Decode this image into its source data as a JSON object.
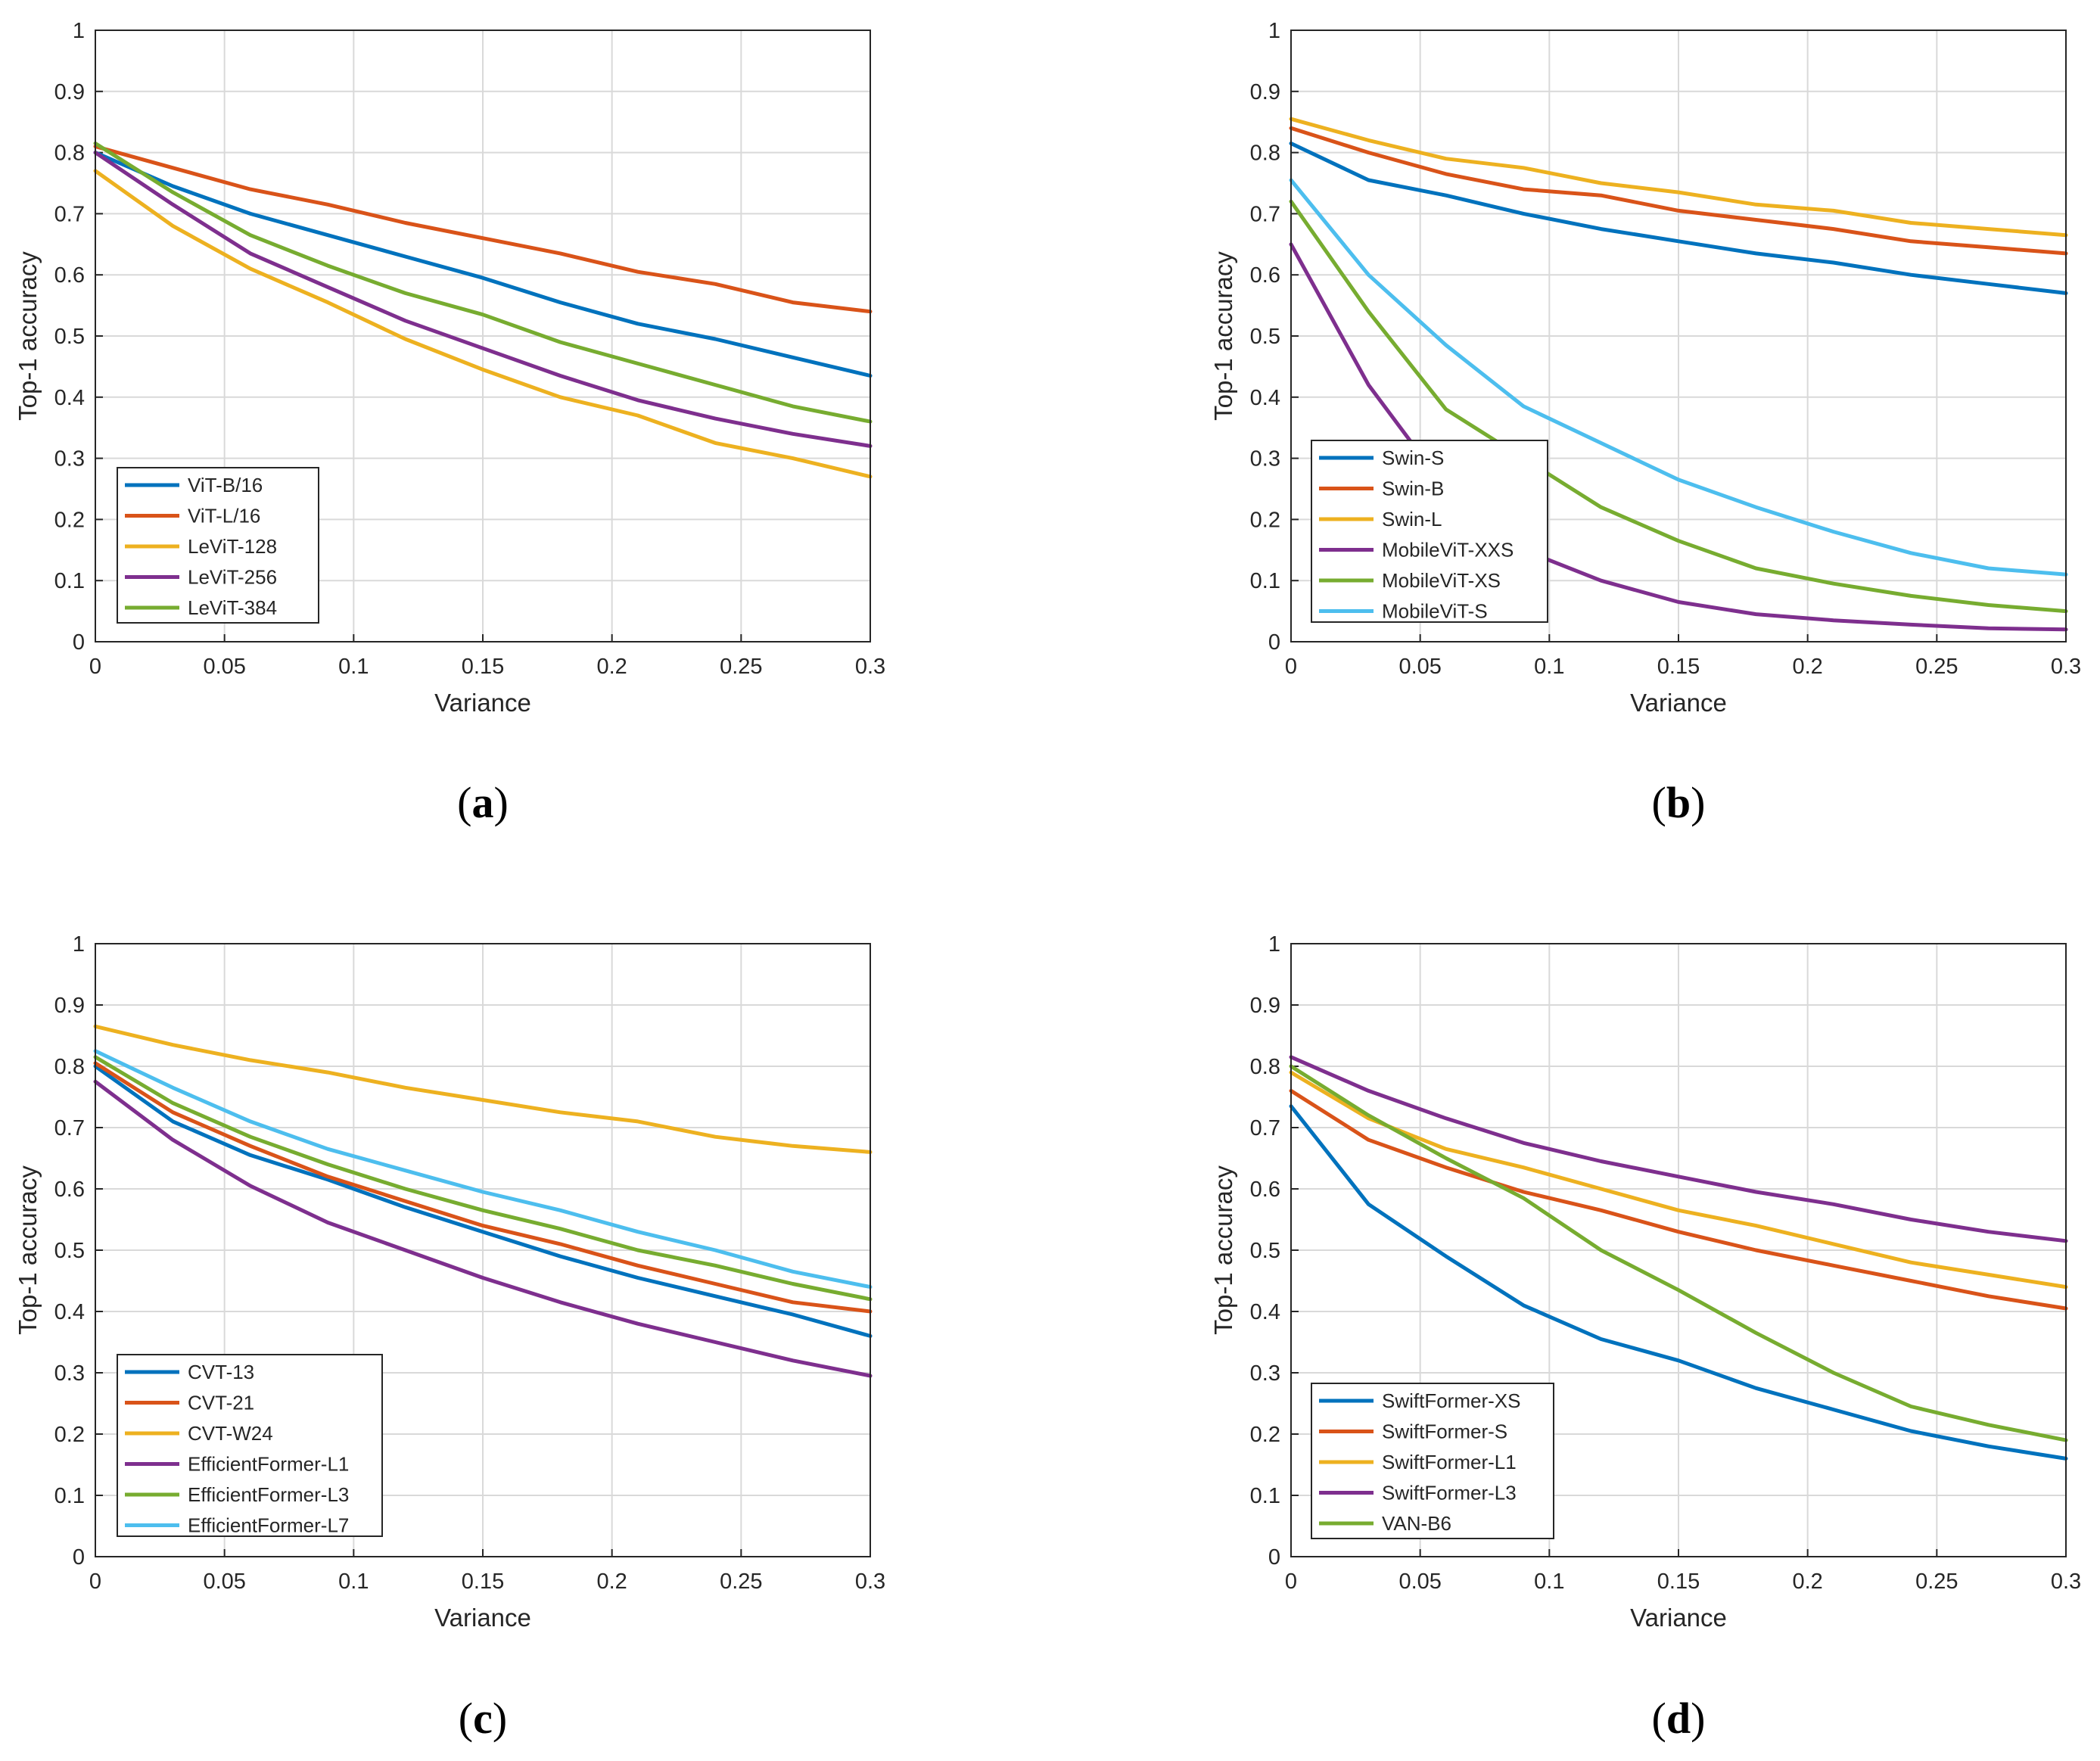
{
  "colors": {
    "blue": "#0072BD",
    "orange": "#D95319",
    "yellow": "#EDB120",
    "purple": "#7E2F8E",
    "green": "#77AC30",
    "cyan": "#4DBEEE"
  },
  "chart_data": [
    {
      "type": "line",
      "caption": "a",
      "xlabel": "Variance",
      "ylabel": "Top-1 accuracy",
      "xlim": [
        0,
        0.3
      ],
      "ylim": [
        0,
        1
      ],
      "x_ticks": [
        "0",
        "0.05",
        "0.1",
        "0.15",
        "0.2",
        "0.25",
        "0.3"
      ],
      "y_ticks": [
        "0",
        "0.1",
        "0.2",
        "0.3",
        "0.4",
        "0.5",
        "0.6",
        "0.7",
        "0.8",
        "0.9",
        "1"
      ],
      "grid": true,
      "legend_position": "bottom-left",
      "x": [
        0,
        0.03,
        0.06,
        0.09,
        0.12,
        0.15,
        0.18,
        0.21,
        0.24,
        0.27,
        0.3
      ],
      "series": [
        {
          "name": "ViT-B/16",
          "color": "#0072BD",
          "values": [
            0.8,
            0.745,
            0.7,
            0.665,
            0.63,
            0.595,
            0.555,
            0.52,
            0.495,
            0.465,
            0.435
          ]
        },
        {
          "name": "ViT-L/16",
          "color": "#D95319",
          "values": [
            0.81,
            0.775,
            0.74,
            0.715,
            0.685,
            0.66,
            0.635,
            0.605,
            0.585,
            0.555,
            0.54
          ]
        },
        {
          "name": "LeViT-128",
          "color": "#EDB120",
          "values": [
            0.77,
            0.68,
            0.61,
            0.555,
            0.495,
            0.445,
            0.4,
            0.37,
            0.325,
            0.3,
            0.27
          ]
        },
        {
          "name": "LeViT-256",
          "color": "#7E2F8E",
          "values": [
            0.8,
            0.715,
            0.635,
            0.58,
            0.525,
            0.48,
            0.435,
            0.395,
            0.365,
            0.34,
            0.32
          ]
        },
        {
          "name": "LeViT-384",
          "color": "#77AC30",
          "values": [
            0.815,
            0.735,
            0.665,
            0.615,
            0.57,
            0.535,
            0.49,
            0.455,
            0.42,
            0.385,
            0.36
          ]
        }
      ]
    },
    {
      "type": "line",
      "caption": "b",
      "xlabel": "Variance",
      "ylabel": "Top-1 accuracy",
      "xlim": [
        0,
        0.3
      ],
      "ylim": [
        0,
        1
      ],
      "x_ticks": [
        "0",
        "0.05",
        "0.1",
        "0.15",
        "0.2",
        "0.25",
        "0.3"
      ],
      "y_ticks": [
        "0",
        "0.1",
        "0.2",
        "0.3",
        "0.4",
        "0.5",
        "0.6",
        "0.7",
        "0.8",
        "0.9",
        "1"
      ],
      "grid": true,
      "legend_position": "bottom-left",
      "x": [
        0,
        0.03,
        0.06,
        0.09,
        0.12,
        0.15,
        0.18,
        0.21,
        0.24,
        0.27,
        0.3
      ],
      "series": [
        {
          "name": "Swin-S",
          "color": "#0072BD",
          "values": [
            0.815,
            0.755,
            0.73,
            0.7,
            0.675,
            0.655,
            0.635,
            0.62,
            0.6,
            0.585,
            0.57
          ]
        },
        {
          "name": "Swin-B",
          "color": "#D95319",
          "values": [
            0.84,
            0.8,
            0.765,
            0.74,
            0.73,
            0.705,
            0.69,
            0.675,
            0.655,
            0.645,
            0.635
          ]
        },
        {
          "name": "Swin-L",
          "color": "#EDB120",
          "values": [
            0.855,
            0.82,
            0.79,
            0.775,
            0.75,
            0.735,
            0.715,
            0.705,
            0.685,
            0.675,
            0.665
          ]
        },
        {
          "name": "MobileViT-XXS",
          "color": "#7E2F8E",
          "values": [
            0.65,
            0.42,
            0.25,
            0.15,
            0.1,
            0.065,
            0.045,
            0.035,
            0.028,
            0.022,
            0.02
          ]
        },
        {
          "name": "MobileViT-XS",
          "color": "#77AC30",
          "values": [
            0.72,
            0.54,
            0.38,
            0.3,
            0.22,
            0.165,
            0.12,
            0.095,
            0.075,
            0.06,
            0.05
          ]
        },
        {
          "name": "MobileViT-S",
          "color": "#4DBEEE",
          "values": [
            0.755,
            0.6,
            0.485,
            0.385,
            0.325,
            0.265,
            0.22,
            0.18,
            0.145,
            0.12,
            0.11
          ]
        }
      ]
    },
    {
      "type": "line",
      "caption": "c",
      "xlabel": "Variance",
      "ylabel": "Top-1 accuracy",
      "xlim": [
        0,
        0.3
      ],
      "ylim": [
        0,
        1
      ],
      "x_ticks": [
        "0",
        "0.05",
        "0.1",
        "0.15",
        "0.2",
        "0.25",
        "0.3"
      ],
      "y_ticks": [
        "0",
        "0.1",
        "0.2",
        "0.3",
        "0.4",
        "0.5",
        "0.6",
        "0.7",
        "0.8",
        "0.9",
        "1"
      ],
      "grid": true,
      "legend_position": "bottom-left",
      "x": [
        0,
        0.03,
        0.06,
        0.09,
        0.12,
        0.15,
        0.18,
        0.21,
        0.24,
        0.27,
        0.3
      ],
      "series": [
        {
          "name": "CVT-13",
          "color": "#0072BD",
          "values": [
            0.8,
            0.71,
            0.655,
            0.615,
            0.57,
            0.53,
            0.49,
            0.455,
            0.425,
            0.395,
            0.36
          ]
        },
        {
          "name": "CVT-21",
          "color": "#D95319",
          "values": [
            0.805,
            0.725,
            0.67,
            0.62,
            0.58,
            0.54,
            0.51,
            0.475,
            0.445,
            0.415,
            0.4
          ]
        },
        {
          "name": "CVT-W24",
          "color": "#EDB120",
          "values": [
            0.865,
            0.835,
            0.81,
            0.79,
            0.765,
            0.745,
            0.725,
            0.71,
            0.685,
            0.67,
            0.66
          ]
        },
        {
          "name": "EfficientFormer-L1",
          "color": "#7E2F8E",
          "values": [
            0.775,
            0.68,
            0.605,
            0.545,
            0.5,
            0.455,
            0.415,
            0.38,
            0.35,
            0.32,
            0.295
          ]
        },
        {
          "name": "EfficientFormer-L3",
          "color": "#77AC30",
          "values": [
            0.815,
            0.74,
            0.685,
            0.64,
            0.6,
            0.565,
            0.535,
            0.5,
            0.475,
            0.445,
            0.42
          ]
        },
        {
          "name": "EfficientFormer-L7",
          "color": "#4DBEEE",
          "values": [
            0.825,
            0.765,
            0.71,
            0.665,
            0.63,
            0.595,
            0.565,
            0.53,
            0.5,
            0.465,
            0.44
          ]
        }
      ]
    },
    {
      "type": "line",
      "caption": "d",
      "xlabel": "Variance",
      "ylabel": "Top-1 accuracy",
      "xlim": [
        0,
        0.3
      ],
      "ylim": [
        0,
        1
      ],
      "x_ticks": [
        "0",
        "0.05",
        "0.1",
        "0.15",
        "0.2",
        "0.25",
        "0.3"
      ],
      "y_ticks": [
        "0",
        "0.1",
        "0.2",
        "0.3",
        "0.4",
        "0.5",
        "0.6",
        "0.7",
        "0.8",
        "0.9",
        "1"
      ],
      "grid": true,
      "legend_position": "bottom-left",
      "x": [
        0,
        0.03,
        0.06,
        0.09,
        0.12,
        0.15,
        0.18,
        0.21,
        0.24,
        0.27,
        0.3
      ],
      "series": [
        {
          "name": "SwiftFormer-XS",
          "color": "#0072BD",
          "values": [
            0.735,
            0.575,
            0.49,
            0.41,
            0.355,
            0.32,
            0.275,
            0.24,
            0.205,
            0.18,
            0.16
          ]
        },
        {
          "name": "SwiftFormer-S",
          "color": "#D95319",
          "values": [
            0.76,
            0.68,
            0.635,
            0.595,
            0.565,
            0.53,
            0.5,
            0.475,
            0.45,
            0.425,
            0.405
          ]
        },
        {
          "name": "SwiftFormer-L1",
          "color": "#EDB120",
          "values": [
            0.79,
            0.715,
            0.665,
            0.635,
            0.6,
            0.565,
            0.54,
            0.51,
            0.48,
            0.46,
            0.44
          ]
        },
        {
          "name": "SwiftFormer-L3",
          "color": "#7E2F8E",
          "values": [
            0.815,
            0.76,
            0.715,
            0.675,
            0.645,
            0.62,
            0.595,
            0.575,
            0.55,
            0.53,
            0.515
          ]
        },
        {
          "name": "VAN-B6",
          "color": "#77AC30",
          "values": [
            0.8,
            0.72,
            0.65,
            0.585,
            0.5,
            0.435,
            0.365,
            0.3,
            0.245,
            0.215,
            0.19
          ]
        }
      ]
    }
  ]
}
